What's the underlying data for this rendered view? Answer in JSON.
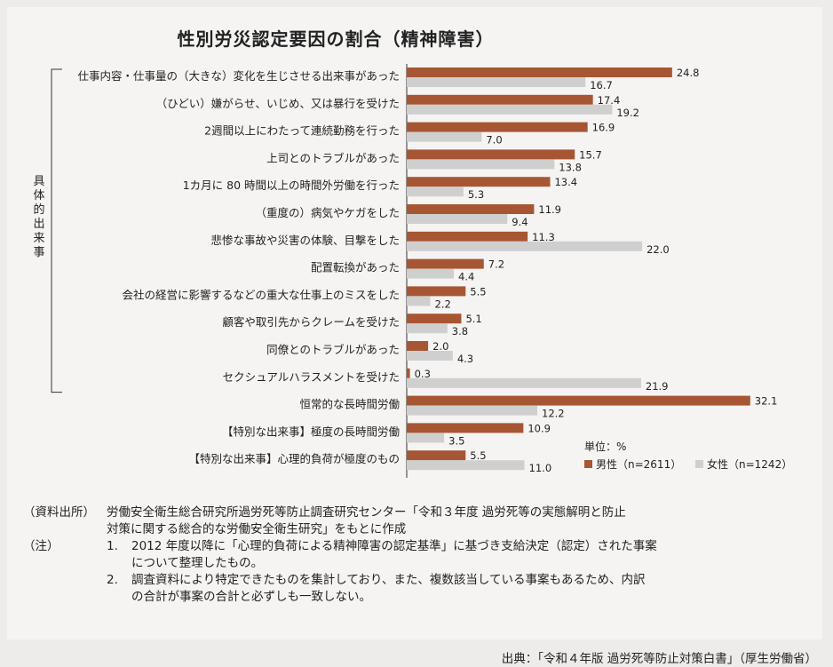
{
  "title": "性別労災認定要因の割合（精神障害）",
  "chart_data": {
    "type": "bar",
    "orientation": "horizontal",
    "title": "性別労災認定要因の割合（精神障害）",
    "unit_label": "単位：%",
    "group_label": "具体的出来事",
    "categories": [
      "仕事内容・仕事量の（大きな）変化を生じさせる出来事があった",
      "（ひどい）嫌がらせ、いじめ、又は暴行を受けた",
      "2週間以上にわたって連続勤務を行った",
      "上司とのトラブルがあった",
      "1カ月に 80 時間以上の時間外労働を行った",
      "（重度の）病気やケガをした",
      "悲惨な事故や災害の体験、目撃をした",
      "配置転換があった",
      "会社の経営に影響するなどの重大な仕事上のミスをした",
      "顧客や取引先からクレームを受けた",
      "同僚とのトラブルがあった",
      "セクシュアルハラスメントを受けた",
      "恒常的な長時間労働",
      "【特別な出来事】極度の長時間労働",
      "【特別な出来事】心理的負荷が極度のもの"
    ],
    "series": [
      {
        "name": "男性（n=2611）",
        "color": "#a75633",
        "values": [
          24.8,
          17.4,
          16.9,
          15.7,
          13.4,
          11.9,
          11.3,
          7.2,
          5.5,
          5.1,
          2.0,
          0.3,
          32.1,
          10.9,
          5.5
        ]
      },
      {
        "name": "女性（n=1242）",
        "color": "#cfcfcf",
        "values": [
          16.7,
          19.2,
          7.0,
          13.8,
          5.3,
          9.4,
          22.0,
          4.4,
          2.2,
          3.8,
          4.3,
          21.9,
          12.2,
          3.5,
          11.0
        ]
      }
    ],
    "legend_position": "bottom-right",
    "grid": false,
    "xlim": [
      0,
      33
    ]
  },
  "notes": {
    "source_label": "（資料出所）",
    "source_text_1": "労働安全衛生総合研究所過労死等防止調査研究センター「令和３年度 過労死等の実態解明と防止",
    "source_text_2": "対策に関する総合的な労働安全衛生研究」をもとに作成",
    "note_label": "（注）",
    "note1_num": "1.",
    "note1_text_1": "2012 年度以降に「心理的負荷による精神障害の認定基準」に基づき支給決定（認定）された事案",
    "note1_text_2": "について整理したもの。",
    "note2_num": "2.",
    "note2_text_1": "調査資料により特定できたものを集計しており、また、複数該当している事案もあるため、内訳",
    "note2_text_2": "の合計が事案の合計と必ずしも一致しない。"
  },
  "citation": "出典：「令和４年版 過労死等防止対策白書」（厚生労働省）"
}
